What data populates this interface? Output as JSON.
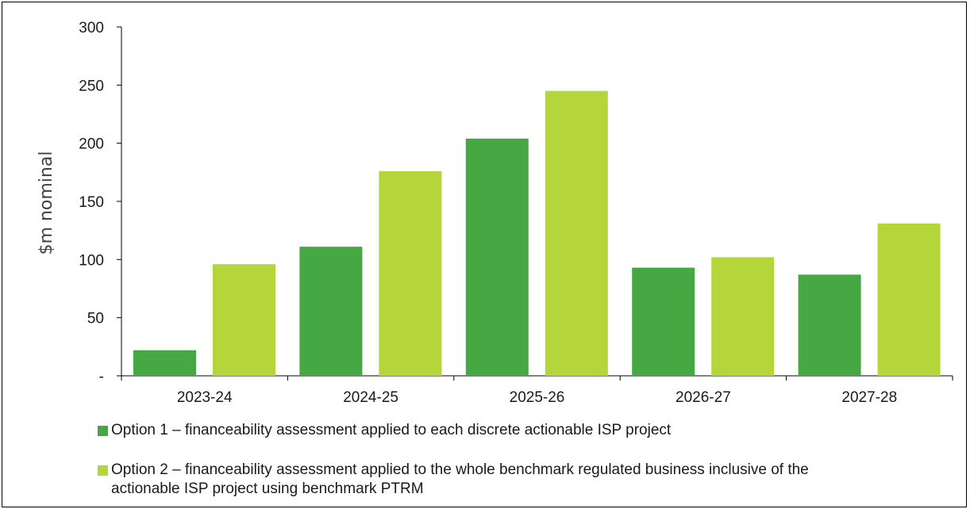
{
  "chart_data": {
    "type": "bar",
    "categories": [
      "2023-24",
      "2024-25",
      "2025-26",
      "2026-27",
      "2027-28"
    ],
    "series": [
      {
        "name": "Option 1 – financeability assessment applied to each discrete actionable ISP project",
        "color": "#46a843",
        "values": [
          22,
          111,
          204,
          93,
          87
        ]
      },
      {
        "name": "Option 2 – financeability assessment applied to the whole benchmark regulated business inclusive of the actionable ISP project using benchmark PTRM",
        "color": "#b5d63b",
        "values": [
          96,
          176,
          245,
          102,
          131
        ]
      }
    ],
    "ylabel": "$m nominal",
    "ylim": [
      0,
      300
    ],
    "yticks": [
      0,
      50,
      100,
      150,
      200,
      250,
      300
    ],
    "ytick_labels": [
      "-",
      "50",
      "100",
      "150",
      "200",
      "250",
      "300"
    ],
    "grid": false,
    "legend_position": "bottom-left"
  }
}
